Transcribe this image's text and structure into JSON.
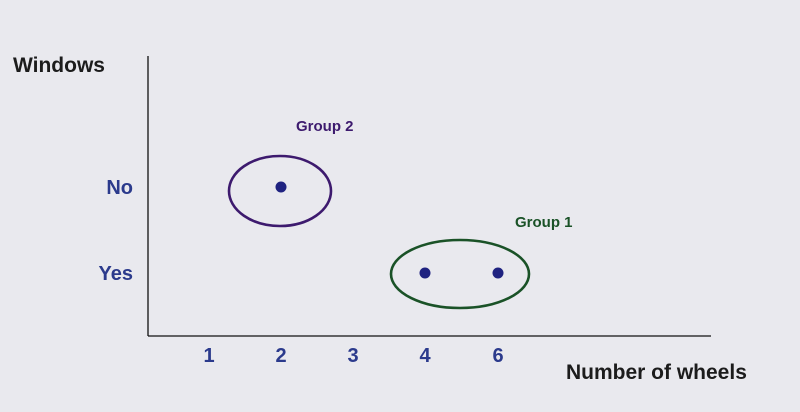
{
  "chart_data": {
    "type": "scatter",
    "title": "",
    "xlabel": "Number of wheels",
    "ylabel": "Windows",
    "x_ticks": [
      "1",
      "2",
      "3",
      "4",
      "6"
    ],
    "y_categories": [
      "Yes",
      "No"
    ],
    "points": [
      {
        "x": "2",
        "y": "No"
      },
      {
        "x": "4",
        "y": "Yes"
      },
      {
        "x": "6",
        "y": "Yes"
      }
    ],
    "groups": [
      {
        "name": "Group 2",
        "members": [
          "2"
        ],
        "y": "No",
        "color": "#3d1a6e"
      },
      {
        "name": "Group 1",
        "members": [
          "4",
          "6"
        ],
        "y": "Yes",
        "color": "#1a5227"
      }
    ],
    "grid": false,
    "legend": "none"
  },
  "colors": {
    "background": "#e9e9ee",
    "axis": "#111111",
    "axis_title": "#1c1c1c",
    "tick_label": "#2b3a8c",
    "point": "#1f2280"
  }
}
